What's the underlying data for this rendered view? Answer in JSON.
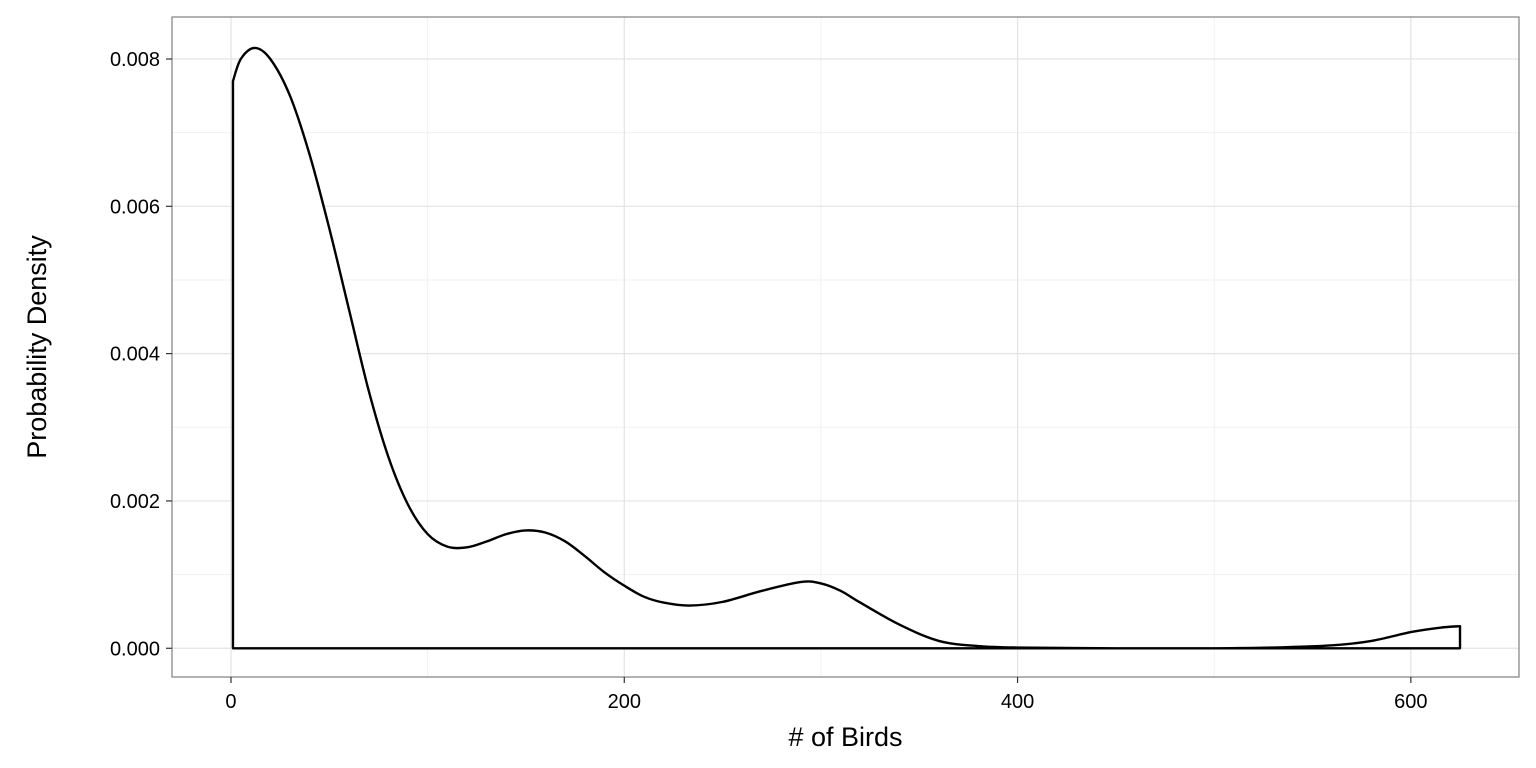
{
  "chart_data": {
    "type": "area",
    "title": "",
    "xlabel": "# of Birds",
    "ylabel": "Probability Density",
    "xlim": [
      -30,
      655
    ],
    "ylim": [
      -0.00039,
      0.00857
    ],
    "x_ticks": [
      0,
      200,
      400,
      600
    ],
    "x_tick_labels": [
      "0",
      "200",
      "400",
      "600"
    ],
    "x_minor_ticks": [
      100,
      300,
      500
    ],
    "y_ticks": [
      0,
      0.002,
      0.004,
      0.006,
      0.008
    ],
    "y_tick_labels": [
      "0.000",
      "0.002",
      "0.004",
      "0.006",
      "0.008"
    ],
    "y_minor_ticks": [
      0.001,
      0.003,
      0.005,
      0.007
    ],
    "grid": true,
    "legend": "none",
    "series": [
      {
        "x": [
          1,
          5,
          12,
          20,
          30,
          40,
          50,
          60,
          70,
          80,
          90,
          100,
          110,
          120,
          130,
          140,
          150,
          160,
          170,
          180,
          190,
          200,
          210,
          220,
          233,
          250,
          270,
          290,
          300,
          310,
          320,
          340,
          360,
          380,
          400,
          450,
          500,
          530,
          560,
          580,
          600,
          615,
          625
        ],
        "y": [
          0.0077,
          0.008,
          0.00815,
          0.008,
          0.0075,
          0.0067,
          0.0057,
          0.0046,
          0.0035,
          0.0026,
          0.00195,
          0.00155,
          0.00138,
          0.00137,
          0.00145,
          0.00155,
          0.0016,
          0.00157,
          0.00145,
          0.00125,
          0.00103,
          0.00085,
          0.0007,
          0.00062,
          0.00058,
          0.00063,
          0.00078,
          0.0009,
          0.00088,
          0.00078,
          0.00062,
          0.00032,
          0.0001,
          3e-05,
          1e-05,
          0.0,
          0.0,
          1e-05,
          4e-05,
          0.0001,
          0.00022,
          0.00028,
          0.0003
        ]
      }
    ],
    "colors": {
      "line": "#000000",
      "fill": "#ffffff",
      "grid_major": "#e3e3e3",
      "grid_minor": "#f1f1f1",
      "panel_border": "#7f7f7f",
      "background": "#ffffff"
    }
  }
}
